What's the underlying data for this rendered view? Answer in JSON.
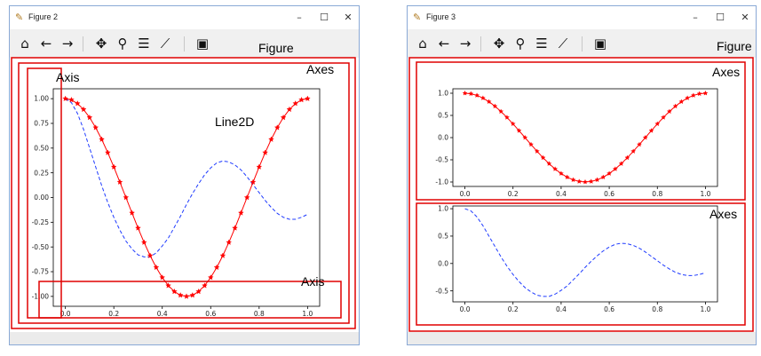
{
  "window_left": {
    "title": "Figure 2",
    "label_figure": "Figure",
    "label_axes": "Axes",
    "label_axis_y": "Axis",
    "label_axis_x": "Axis",
    "label_line": "Line2D"
  },
  "window_right": {
    "title": "Figure 3",
    "label_figure": "Figure",
    "label_axes_top": "Axes",
    "label_axes_bottom": "Axes"
  },
  "window_buttons": {
    "minimize": "–",
    "maximize": "☐",
    "close": "✕"
  },
  "toolbar_icons": [
    "home-icon",
    "back-arrow-icon",
    "forward-arrow-icon",
    "pan-icon",
    "zoom-icon",
    "subplots-config-icon",
    "edit-axes-icon",
    "save-icon"
  ],
  "colors": {
    "red_series": "#ff0000",
    "blue_series": "#1f3bff",
    "annotation_box": "#e00000"
  },
  "chart_data": [
    {
      "type": "line",
      "xlim": [
        -0.05,
        1.05
      ],
      "ylim": [
        -1.1,
        1.1
      ],
      "xticks": [
        "0.0",
        "0.2",
        "0.4",
        "0.6",
        "0.8",
        "1.0"
      ],
      "yticks": [
        "1.00",
        "0.75",
        "0.50",
        "0.25",
        "0.00",
        "-0.25",
        "-0.50",
        "-0.75",
        "-1.00"
      ],
      "x": [
        0,
        0.025,
        0.05,
        0.075,
        0.1,
        0.125,
        0.15,
        0.175,
        0.2,
        0.225,
        0.25,
        0.275,
        0.3,
        0.325,
        0.35,
        0.375,
        0.4,
        0.425,
        0.45,
        0.475,
        0.5,
        0.525,
        0.55,
        0.575,
        0.6,
        0.625,
        0.65,
        0.675,
        0.7,
        0.725,
        0.75,
        0.775,
        0.8,
        0.825,
        0.85,
        0.875,
        0.9,
        0.925,
        0.95,
        0.975,
        1.0
      ],
      "series": [
        {
          "style": "red-star-solid",
          "values": [
            1.0,
            0.988,
            0.951,
            0.891,
            0.809,
            0.707,
            0.588,
            0.454,
            0.309,
            0.156,
            0.0,
            -0.156,
            -0.309,
            -0.454,
            -0.588,
            -0.707,
            -0.809,
            -0.891,
            -0.951,
            -0.988,
            -1.0,
            -0.988,
            -0.951,
            -0.891,
            -0.809,
            -0.707,
            -0.588,
            -0.454,
            -0.309,
            -0.156,
            0.0,
            0.156,
            0.309,
            0.454,
            0.588,
            0.707,
            0.809,
            0.891,
            0.951,
            0.988,
            1.0
          ]
        },
        {
          "style": "blue-dashed",
          "values": [
            1.0,
            0.96,
            0.85,
            0.69,
            0.5,
            0.31,
            0.12,
            -0.05,
            -0.2,
            -0.33,
            -0.44,
            -0.52,
            -0.58,
            -0.6,
            -0.6,
            -0.56,
            -0.49,
            -0.41,
            -0.3,
            -0.19,
            -0.07,
            0.04,
            0.14,
            0.23,
            0.3,
            0.35,
            0.37,
            0.36,
            0.33,
            0.28,
            0.21,
            0.13,
            0.05,
            -0.03,
            -0.1,
            -0.16,
            -0.2,
            -0.22,
            -0.22,
            -0.2,
            -0.17
          ]
        }
      ]
    }
  ]
}
